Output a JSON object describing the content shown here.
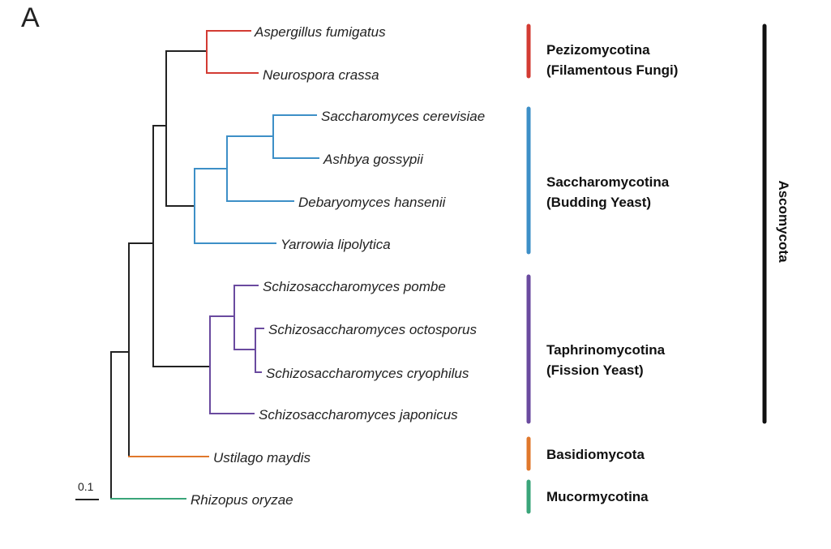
{
  "panel_label": "A",
  "colors": {
    "root": "#222222",
    "pezizomycotina": "#d33b33",
    "saccharomycotina": "#3d8fc7",
    "taphrinomycotina": "#6a4a9f",
    "basidiomycota": "#e0782c",
    "mucormycotina": "#3aa57a",
    "ascomycota_bar": "#111111"
  },
  "scale_bar": {
    "label": "0.1"
  },
  "species": [
    {
      "name": "Aspergillus fumigatus",
      "clade": "pezizomycotina"
    },
    {
      "name": "Neurospora crassa",
      "clade": "pezizomycotina"
    },
    {
      "name": "Saccharomyces cerevisiae",
      "clade": "saccharomycotina"
    },
    {
      "name": "Ashbya gossypii",
      "clade": "saccharomycotina"
    },
    {
      "name": "Debaryomyces hansenii",
      "clade": "saccharomycotina"
    },
    {
      "name": "Yarrowia lipolytica",
      "clade": "saccharomycotina"
    },
    {
      "name": "Schizosaccharomyces pombe",
      "clade": "taphrinomycotina"
    },
    {
      "name": "Schizosaccharomyces octosporus",
      "clade": "taphrinomycotina"
    },
    {
      "name": "Schizosaccharomyces cryophilus",
      "clade": "taphrinomycotina"
    },
    {
      "name": "Schizosaccharomyces japonicus",
      "clade": "taphrinomycotina"
    },
    {
      "name": "Ustilago maydis",
      "clade": "basidiomycota"
    },
    {
      "name": "Rhizopus oryzae",
      "clade": "mucormycotina"
    }
  ],
  "groups": [
    {
      "key": "pezizomycotina",
      "line1": "Pezizomycotina",
      "line2": "(Filamentous Fungi)"
    },
    {
      "key": "saccharomycotina",
      "line1": "Saccharomycotina",
      "line2": "(Budding Yeast)"
    },
    {
      "key": "taphrinomycotina",
      "line1": "Taphrinomycotina",
      "line2": "(Fission Yeast)"
    },
    {
      "key": "basidiomycota",
      "line1": "Basidiomycota",
      "line2": ""
    },
    {
      "key": "mucormycotina",
      "line1": "Mucormycotina",
      "line2": ""
    }
  ],
  "outer_group": {
    "label": "Ascomycota"
  }
}
